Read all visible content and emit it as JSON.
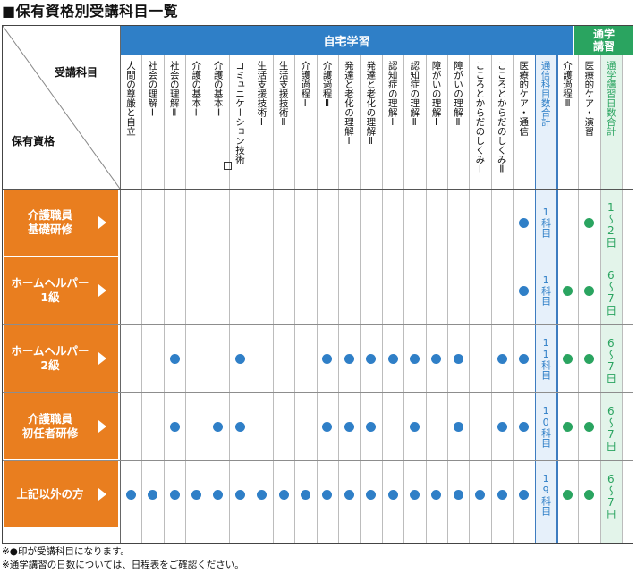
{
  "title": "■保有資格別受講科目一覧",
  "header": {
    "group_home": "自宅学習",
    "group_school_line1": "通学",
    "group_school_line2": "講習",
    "corner_subject": "受講科目",
    "corner_qual": "保有資格"
  },
  "columns": [
    {
      "id": "c1",
      "label": "人間の尊厳と自立",
      "type": "home"
    },
    {
      "id": "c2",
      "label": "社会の理解Ⅰ",
      "type": "home"
    },
    {
      "id": "c3",
      "label": "社会の理解Ⅱ",
      "type": "home"
    },
    {
      "id": "c4",
      "label": "介護の基本Ⅰ",
      "type": "home"
    },
    {
      "id": "c5",
      "label": "介護の基本Ⅱ",
      "type": "home"
    },
    {
      "id": "c6",
      "label": "コミュニケーション技術",
      "type": "home"
    },
    {
      "id": "c7",
      "label": "生活支援技術Ⅰ",
      "type": "home"
    },
    {
      "id": "c8",
      "label": "生活支援技術Ⅱ",
      "type": "home"
    },
    {
      "id": "c9",
      "label": "介護過程Ⅰ",
      "type": "home"
    },
    {
      "id": "c10",
      "label": "介護過程Ⅱ",
      "type": "home"
    },
    {
      "id": "c11",
      "label": "発達と老化の理解Ⅰ",
      "type": "home"
    },
    {
      "id": "c12",
      "label": "発達と老化の理解Ⅱ",
      "type": "home"
    },
    {
      "id": "c13",
      "label": "認知症の理解Ⅰ",
      "type": "home"
    },
    {
      "id": "c14",
      "label": "認知症の理解Ⅱ",
      "type": "home"
    },
    {
      "id": "c15",
      "label": "障がいの理解Ⅰ",
      "type": "home"
    },
    {
      "id": "c16",
      "label": "障がいの理解Ⅱ",
      "type": "home"
    },
    {
      "id": "c17",
      "label": "こころとからだのしくみⅠ",
      "type": "home"
    },
    {
      "id": "c18",
      "label": "こころとからだのしくみⅡ",
      "type": "home"
    },
    {
      "id": "c19",
      "label": "医療的ケア・通信",
      "type": "home"
    },
    {
      "id": "c20",
      "label": "通信科目数合計",
      "type": "count"
    },
    {
      "id": "c21",
      "label": "介護過程Ⅲ",
      "type": "school"
    },
    {
      "id": "c22",
      "label": "医療的ケア・演習",
      "type": "school"
    },
    {
      "id": "c23",
      "label": "通学講習日数合計",
      "type": "days"
    }
  ],
  "rows": [
    {
      "label_line1": "介護職員",
      "label_line2": "基礎研修",
      "dots": [
        19,
        22
      ],
      "count": "1科目",
      "days": "1〜2日"
    },
    {
      "label_line1": "ホームヘルパー",
      "label_line2": "1級",
      "dots": [
        19,
        21,
        22
      ],
      "count": "1科目",
      "days": "6〜7日"
    },
    {
      "label_line1": "ホームヘルパー",
      "label_line2": "2級",
      "dots": [
        3,
        6,
        10,
        11,
        12,
        13,
        14,
        15,
        16,
        18,
        19,
        21,
        22
      ],
      "count": "11科目",
      "days": "6〜7日"
    },
    {
      "label_line1": "介護職員",
      "label_line2": "初任者研修",
      "dots": [
        3,
        5,
        6,
        10,
        11,
        12,
        14,
        16,
        18,
        19,
        21,
        22
      ],
      "count": "10科目",
      "days": "6〜7日"
    },
    {
      "label_line1": "上記以外の方",
      "label_line2": "",
      "dots": [
        1,
        2,
        3,
        4,
        5,
        6,
        7,
        8,
        9,
        10,
        11,
        12,
        13,
        14,
        15,
        16,
        17,
        18,
        19,
        21,
        22
      ],
      "count": "19科目",
      "days": "6〜7日"
    }
  ],
  "notes": {
    "line1": "※●印が受講科目になります。",
    "line2": "※通学講習の日数については、日程表をご確認ください。"
  },
  "colors": {
    "blue": "#2f7fc7",
    "green": "#2aa460",
    "orange": "#e97e1f"
  }
}
